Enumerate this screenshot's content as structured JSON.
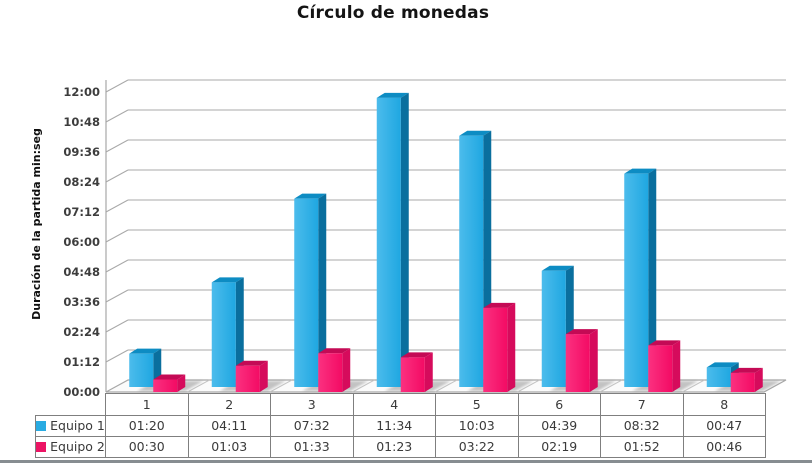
{
  "title": "Círculo de monedas",
  "y_axis": {
    "label": "Duración de la partida min:seg",
    "ticks": [
      "00:00",
      "01:12",
      "02:24",
      "03:36",
      "04:48",
      "06:00",
      "07:12",
      "08:24",
      "09:36",
      "10:48",
      "12:00"
    ]
  },
  "chart_data": {
    "type": "bar",
    "style": "3d-column",
    "title": "Círculo de monedas",
    "xlabel": "",
    "ylabel": "Duración de la partida min:seg",
    "categories": [
      "1",
      "2",
      "3",
      "4",
      "5",
      "6",
      "7",
      "8"
    ],
    "series": [
      {
        "name": "Equipo 1",
        "values": [
          "01:20",
          "04:11",
          "07:32",
          "11:34",
          "10:03",
          "04:39",
          "08:32",
          "00:47"
        ],
        "values_seconds": [
          80,
          251,
          452,
          694,
          603,
          279,
          512,
          47
        ],
        "swatch_color": "#29abe2",
        "face_front": "#1fa7e1",
        "face_front_light": "#4cbcec",
        "face_top": "#0d8cc3",
        "face_side": "#0a6f9e"
      },
      {
        "name": "Equipo 2",
        "values": [
          "00:30",
          "01:03",
          "01:33",
          "01:23",
          "03:22",
          "02:19",
          "01:52",
          "00:46"
        ],
        "values_seconds": [
          30,
          63,
          93,
          83,
          202,
          139,
          112,
          46
        ],
        "swatch_color": "#ec1464",
        "face_front": "#f30b64",
        "face_front_light": "#fb3180",
        "face_top": "#c40a55",
        "face_side": "#d60b5c"
      }
    ],
    "y_ticks": [
      "00:00",
      "01:12",
      "02:24",
      "03:36",
      "04:48",
      "06:00",
      "07:12",
      "08:24",
      "09:36",
      "10:48",
      "12:00"
    ],
    "ylim_seconds": [
      0,
      720
    ],
    "grid": true,
    "legend_position": "table-left",
    "gridline_color": "#a8a8a8",
    "tick_text_color": "#3d3d3d"
  }
}
